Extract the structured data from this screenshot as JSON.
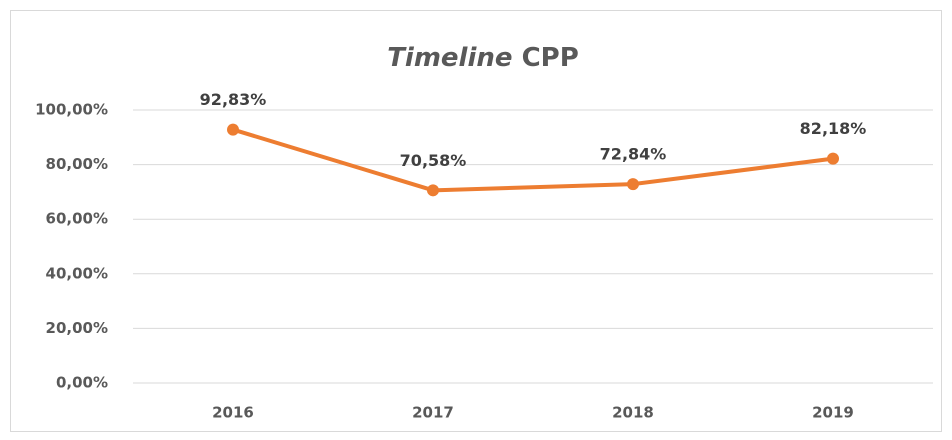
{
  "chart_data": {
    "type": "line",
    "title": [
      "Timeline",
      "CPP"
    ],
    "categories": [
      "2016",
      "2017",
      "2018",
      "2019"
    ],
    "series": [
      {
        "color": "#ed7d31",
        "values": [
          92.83,
          70.58,
          72.84,
          82.18
        ],
        "value_labels": [
          "92,83%",
          "70,58%",
          "72,84%",
          "82,18%"
        ]
      }
    ],
    "ylim": [
      0,
      100
    ],
    "yticks": [
      {
        "value": 0,
        "label": "0,00%"
      },
      {
        "value": 20,
        "label": "20,00%"
      },
      {
        "value": 40,
        "label": "40,00%"
      },
      {
        "value": 60,
        "label": "60,00%"
      },
      {
        "value": 80,
        "label": "80,00%"
      },
      {
        "value": 100,
        "label": "100,00%"
      }
    ],
    "grid": true
  }
}
